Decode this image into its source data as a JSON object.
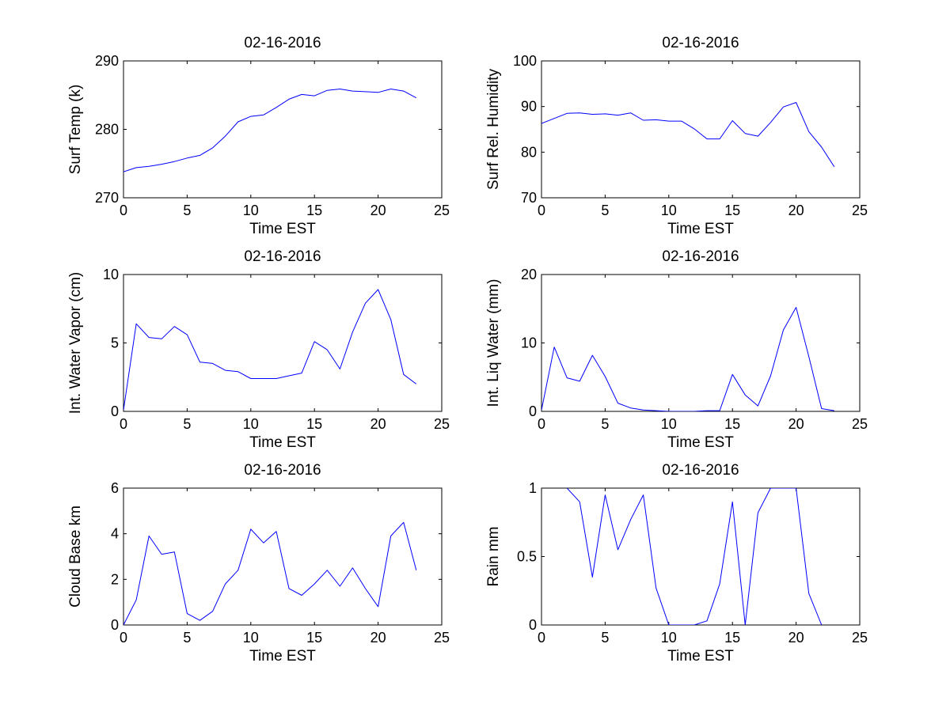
{
  "figure": {
    "background": "#ffffff",
    "line_color": "#0000ff",
    "axis_color": "#000000"
  },
  "chart_data": [
    {
      "type": "line",
      "title": "02-16-2016",
      "xlabel": "Time EST",
      "ylabel": "Surf Temp (k)",
      "xlim": [
        0,
        25
      ],
      "ylim": [
        270,
        290
      ],
      "xticks": [
        0,
        5,
        10,
        15,
        20,
        25
      ],
      "yticks": [
        270,
        280,
        290
      ],
      "series": [
        {
          "name": "Surf Temp",
          "x": [
            0,
            1,
            2,
            3,
            4,
            5,
            6,
            7,
            8,
            9,
            10,
            11,
            12,
            13,
            14,
            15,
            16,
            17,
            18,
            19,
            20,
            21,
            22,
            23
          ],
          "values": [
            273.8,
            274.4,
            274.6,
            274.9,
            275.3,
            275.8,
            276.2,
            277.3,
            279.0,
            281.1,
            281.9,
            282.1,
            283.2,
            284.4,
            285.1,
            284.9,
            285.7,
            285.9,
            285.6,
            285.5,
            285.4,
            285.9,
            285.6,
            284.6
          ]
        }
      ]
    },
    {
      "type": "line",
      "title": "02-16-2016",
      "xlabel": "Time EST",
      "ylabel": "Surf Rel. Humidity",
      "xlim": [
        0,
        25
      ],
      "ylim": [
        70,
        100
      ],
      "xticks": [
        0,
        5,
        10,
        15,
        20,
        25
      ],
      "yticks": [
        70,
        80,
        90,
        100
      ],
      "series": [
        {
          "name": "Surf Rel. Humidity",
          "x": [
            0,
            1,
            2,
            3,
            4,
            5,
            6,
            7,
            8,
            9,
            10,
            11,
            12,
            13,
            14,
            15,
            16,
            17,
            18,
            19,
            20,
            21,
            22,
            23
          ],
          "values": [
            86.3,
            87.4,
            88.5,
            88.6,
            88.3,
            88.4,
            88.1,
            88.6,
            87.0,
            87.1,
            86.8,
            86.8,
            85.1,
            82.9,
            82.9,
            86.9,
            84.1,
            83.5,
            86.5,
            89.9,
            90.9,
            84.5,
            81.1,
            76.8
          ]
        }
      ]
    },
    {
      "type": "line",
      "title": "02-16-2016",
      "xlabel": "Time EST",
      "ylabel": "Int. Water Vapor (cm)",
      "xlim": [
        0,
        25
      ],
      "ylim": [
        0,
        10
      ],
      "xticks": [
        0,
        5,
        10,
        15,
        20,
        25
      ],
      "yticks": [
        0,
        5,
        10
      ],
      "series": [
        {
          "name": "Int. Water Vapor",
          "x": [
            0,
            1,
            2,
            3,
            4,
            5,
            6,
            7,
            8,
            9,
            10,
            11,
            12,
            13,
            14,
            15,
            16,
            17,
            18,
            19,
            20,
            21,
            22,
            23
          ],
          "values": [
            0.1,
            6.4,
            5.4,
            5.3,
            6.2,
            5.6,
            3.6,
            3.5,
            3.0,
            2.9,
            2.4,
            2.4,
            2.4,
            2.6,
            2.8,
            5.1,
            4.5,
            3.1,
            5.8,
            7.9,
            8.9,
            6.7,
            2.7,
            2.0
          ]
        }
      ]
    },
    {
      "type": "line",
      "title": "02-16-2016",
      "xlabel": "Time EST",
      "ylabel": "Int. Liq Water (mm)",
      "xlim": [
        0,
        25
      ],
      "ylim": [
        0,
        20
      ],
      "xticks": [
        0,
        5,
        10,
        15,
        20,
        25
      ],
      "yticks": [
        0,
        10,
        20
      ],
      "series": [
        {
          "name": "Int. Liq Water",
          "x": [
            0,
            1,
            2,
            3,
            4,
            5,
            6,
            7,
            8,
            9,
            10,
            11,
            12,
            13,
            14,
            15,
            16,
            17,
            18,
            19,
            20,
            21,
            22,
            23
          ],
          "values": [
            0.2,
            9.4,
            4.9,
            4.4,
            8.2,
            5.1,
            1.2,
            0.5,
            0.2,
            0.1,
            0.0,
            0.0,
            0.0,
            0.1,
            0.1,
            5.4,
            2.4,
            0.8,
            5.2,
            11.9,
            15.2,
            8.0,
            0.4,
            0.1
          ]
        }
      ]
    },
    {
      "type": "line",
      "title": "02-16-2016",
      "xlabel": "Time EST",
      "ylabel": "Cloud Base km",
      "xlim": [
        0,
        25
      ],
      "ylim": [
        0,
        6
      ],
      "xticks": [
        0,
        5,
        10,
        15,
        20,
        25
      ],
      "yticks": [
        0,
        2,
        4,
        6
      ],
      "series": [
        {
          "name": "Cloud Base",
          "x": [
            0,
            1,
            2,
            3,
            4,
            5,
            6,
            7,
            8,
            9,
            10,
            11,
            12,
            13,
            14,
            15,
            16,
            17,
            18,
            19,
            20,
            21,
            22,
            23
          ],
          "values": [
            0.0,
            1.1,
            3.9,
            3.1,
            3.2,
            0.5,
            0.2,
            0.6,
            1.8,
            2.4,
            4.2,
            3.6,
            4.1,
            1.6,
            1.3,
            1.8,
            2.4,
            1.7,
            2.5,
            1.6,
            0.8,
            3.9,
            4.5,
            2.4
          ]
        }
      ]
    },
    {
      "type": "line",
      "title": "02-16-2016",
      "xlabel": "Time EST",
      "ylabel": "Rain mm",
      "xlim": [
        0,
        25
      ],
      "ylim": [
        0,
        1
      ],
      "xticks": [
        0,
        5,
        10,
        15,
        20,
        25
      ],
      "yticks": [
        0,
        0.5,
        1
      ],
      "series": [
        {
          "name": "Rain",
          "x": [
            2,
            3,
            4,
            5,
            6,
            7,
            8,
            9,
            10,
            11,
            12,
            13,
            14,
            15,
            16,
            17,
            18,
            19,
            20,
            21,
            22
          ],
          "values": [
            1.0,
            0.9,
            0.35,
            0.95,
            0.55,
            0.77,
            0.95,
            0.27,
            0.0,
            0.0,
            0.0,
            0.03,
            0.3,
            0.9,
            0.0,
            0.82,
            1.0,
            1.0,
            1.0,
            0.23,
            0.0
          ]
        }
      ]
    }
  ]
}
